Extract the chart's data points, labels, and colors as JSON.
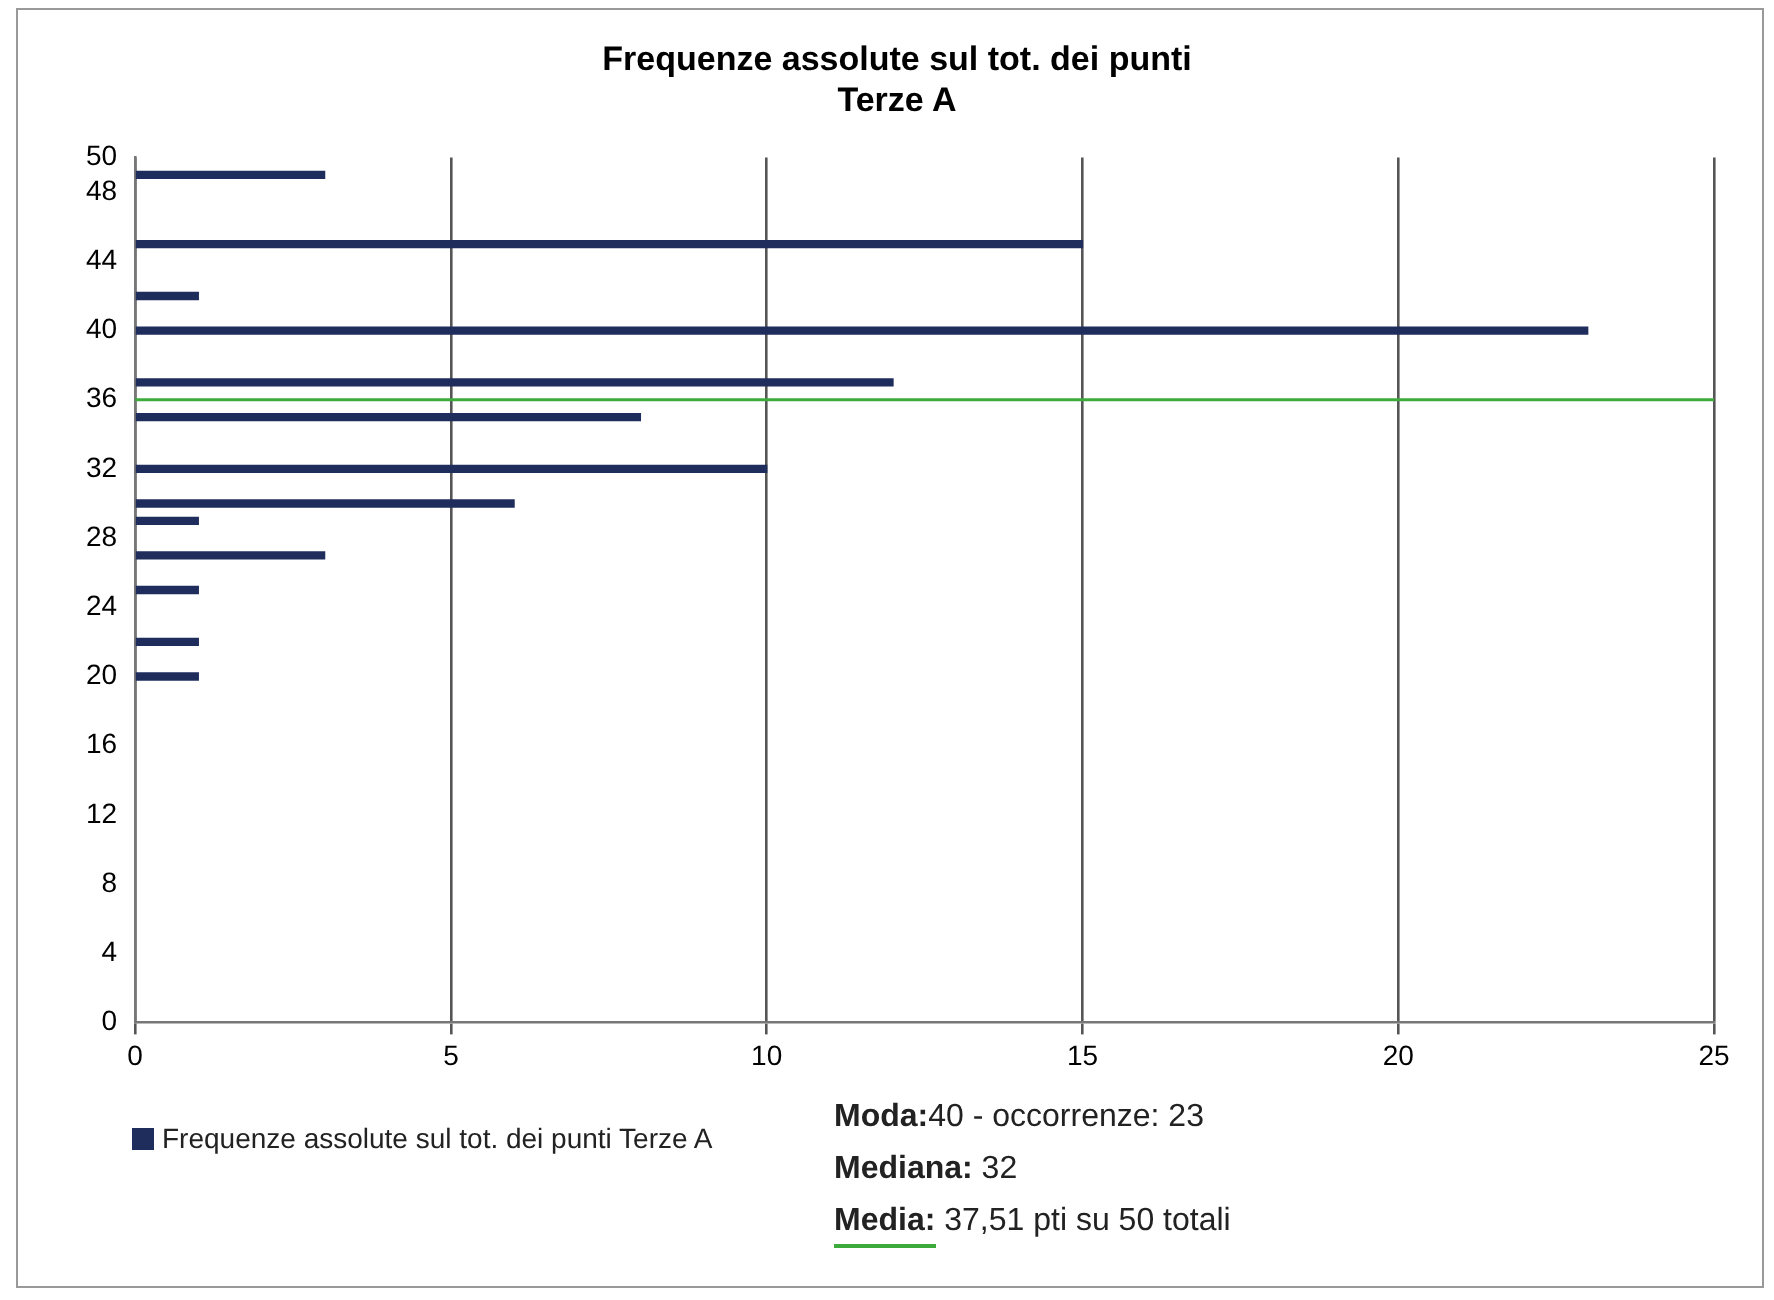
{
  "chart_data": {
    "type": "bar",
    "orientation": "horizontal",
    "title": "Frequenze assolute sul tot. dei punti\nTerze A",
    "x": [
      49,
      45,
      42,
      40,
      37,
      35,
      32,
      30,
      29,
      27,
      25,
      22,
      20
    ],
    "series": [
      {
        "name": "Frequenze assolute sul tot. dei punti Terze A",
        "color": "#1f2d5c",
        "values": [
          3,
          15,
          1,
          23,
          12,
          8,
          10,
          6,
          1,
          3,
          1,
          1,
          1
        ]
      }
    ],
    "xlim": [
      0,
      25
    ],
    "xticks": [
      0,
      5,
      10,
      15,
      20,
      25
    ],
    "ylim": [
      0,
      50
    ],
    "yticks": [
      0,
      4,
      8,
      12,
      16,
      20,
      24,
      28,
      32,
      36,
      40,
      44,
      48,
      50
    ],
    "grid": "x",
    "legend": "bottom left",
    "ref_lines": [
      {
        "axis": "y",
        "value": 36,
        "color": "#3cab3c"
      }
    ],
    "annotations": [
      "Moda:40 - occorrenze: 23",
      "Mediana: 32",
      "Media: 37,51 pti su 50 totali"
    ]
  }
}
